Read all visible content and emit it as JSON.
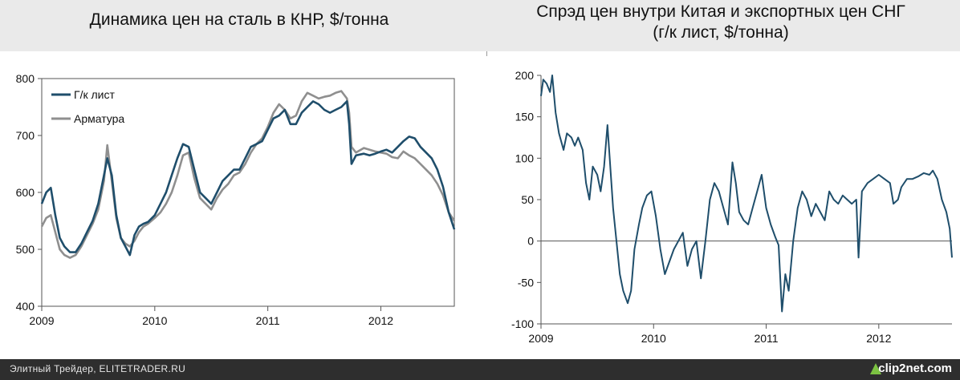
{
  "titles": {
    "left": "Динамика цен на сталь в КНР, $/тонна",
    "right_line1": "Спрэд цен внутри Китая и экспортных цен СНГ",
    "right_line2": "(г/к лист, $/тонна)"
  },
  "footer": {
    "text": "Элитный Трейдер, ELITETRADER.RU",
    "brand": "clip2net.com"
  },
  "chart_data": [
    {
      "type": "line",
      "title": "Динамика цен на сталь в КНР, $/тонна",
      "x_ticks": [
        "2009",
        "2010",
        "2011",
        "2012"
      ],
      "ylim": [
        400,
        800
      ],
      "y_ticks": [
        400,
        500,
        600,
        700,
        800
      ],
      "grid": false,
      "legend": "top-left",
      "colors": {
        "Г/к лист": "#1f4e6b",
        "Арматура": "#8f8f8f"
      },
      "series": [
        {
          "name": "Г/к лист",
          "points": [
            [
              2009.0,
              580
            ],
            [
              2009.04,
              600
            ],
            [
              2009.08,
              608
            ],
            [
              2009.12,
              560
            ],
            [
              2009.16,
              520
            ],
            [
              2009.2,
              505
            ],
            [
              2009.25,
              495
            ],
            [
              2009.3,
              495
            ],
            [
              2009.35,
              510
            ],
            [
              2009.4,
              530
            ],
            [
              2009.45,
              550
            ],
            [
              2009.5,
              580
            ],
            [
              2009.55,
              630
            ],
            [
              2009.58,
              660
            ],
            [
              2009.62,
              630
            ],
            [
              2009.66,
              560
            ],
            [
              2009.7,
              520
            ],
            [
              2009.74,
              505
            ],
            [
              2009.78,
              490
            ],
            [
              2009.82,
              525
            ],
            [
              2009.86,
              540
            ],
            [
              2009.9,
              545
            ],
            [
              2009.94,
              548
            ],
            [
              2010.0,
              560
            ],
            [
              2010.05,
              580
            ],
            [
              2010.1,
              600
            ],
            [
              2010.15,
              630
            ],
            [
              2010.2,
              660
            ],
            [
              2010.25,
              685
            ],
            [
              2010.3,
              680
            ],
            [
              2010.35,
              640
            ],
            [
              2010.4,
              600
            ],
            [
              2010.45,
              590
            ],
            [
              2010.5,
              580
            ],
            [
              2010.55,
              600
            ],
            [
              2010.6,
              620
            ],
            [
              2010.65,
              630
            ],
            [
              2010.7,
              640
            ],
            [
              2010.75,
              640
            ],
            [
              2010.8,
              660
            ],
            [
              2010.85,
              680
            ],
            [
              2010.9,
              685
            ],
            [
              2010.95,
              690
            ],
            [
              2011.0,
              710
            ],
            [
              2011.05,
              730
            ],
            [
              2011.1,
              735
            ],
            [
              2011.15,
              745
            ],
            [
              2011.2,
              720
            ],
            [
              2011.25,
              720
            ],
            [
              2011.3,
              740
            ],
            [
              2011.35,
              750
            ],
            [
              2011.4,
              760
            ],
            [
              2011.45,
              755
            ],
            [
              2011.5,
              745
            ],
            [
              2011.55,
              740
            ],
            [
              2011.6,
              745
            ],
            [
              2011.65,
              750
            ],
            [
              2011.7,
              760
            ],
            [
              2011.72,
              720
            ],
            [
              2011.74,
              650
            ],
            [
              2011.78,
              665
            ],
            [
              2011.85,
              668
            ],
            [
              2011.9,
              665
            ],
            [
              2011.95,
              668
            ],
            [
              2012.0,
              672
            ],
            [
              2012.05,
              675
            ],
            [
              2012.1,
              670
            ],
            [
              2012.15,
              680
            ],
            [
              2012.2,
              690
            ],
            [
              2012.25,
              698
            ],
            [
              2012.3,
              695
            ],
            [
              2012.35,
              680
            ],
            [
              2012.4,
              670
            ],
            [
              2012.45,
              660
            ],
            [
              2012.5,
              640
            ],
            [
              2012.55,
              610
            ],
            [
              2012.6,
              565
            ],
            [
              2012.65,
              535
            ]
          ]
        },
        {
          "name": "Арматура",
          "points": [
            [
              2009.0,
              540
            ],
            [
              2009.04,
              555
            ],
            [
              2009.08,
              560
            ],
            [
              2009.12,
              530
            ],
            [
              2009.16,
              500
            ],
            [
              2009.2,
              490
            ],
            [
              2009.25,
              485
            ],
            [
              2009.3,
              490
            ],
            [
              2009.35,
              505
            ],
            [
              2009.4,
              525
            ],
            [
              2009.45,
              545
            ],
            [
              2009.5,
              570
            ],
            [
              2009.55,
              620
            ],
            [
              2009.58,
              683
            ],
            [
              2009.62,
              620
            ],
            [
              2009.66,
              555
            ],
            [
              2009.7,
              520
            ],
            [
              2009.74,
              510
            ],
            [
              2009.78,
              505
            ],
            [
              2009.82,
              515
            ],
            [
              2009.86,
              530
            ],
            [
              2009.9,
              540
            ],
            [
              2009.94,
              545
            ],
            [
              2010.0,
              555
            ],
            [
              2010.05,
              565
            ],
            [
              2010.1,
              580
            ],
            [
              2010.15,
              600
            ],
            [
              2010.2,
              630
            ],
            [
              2010.25,
              665
            ],
            [
              2010.3,
              670
            ],
            [
              2010.35,
              625
            ],
            [
              2010.4,
              590
            ],
            [
              2010.45,
              580
            ],
            [
              2010.5,
              570
            ],
            [
              2010.55,
              590
            ],
            [
              2010.6,
              605
            ],
            [
              2010.65,
              615
            ],
            [
              2010.7,
              630
            ],
            [
              2010.75,
              635
            ],
            [
              2010.8,
              650
            ],
            [
              2010.85,
              670
            ],
            [
              2010.9,
              685
            ],
            [
              2010.95,
              695
            ],
            [
              2011.0,
              715
            ],
            [
              2011.05,
              740
            ],
            [
              2011.1,
              755
            ],
            [
              2011.15,
              745
            ],
            [
              2011.2,
              730
            ],
            [
              2011.25,
              735
            ],
            [
              2011.3,
              760
            ],
            [
              2011.35,
              775
            ],
            [
              2011.4,
              770
            ],
            [
              2011.45,
              765
            ],
            [
              2011.5,
              768
            ],
            [
              2011.55,
              770
            ],
            [
              2011.6,
              775
            ],
            [
              2011.65,
              778
            ],
            [
              2011.7,
              765
            ],
            [
              2011.72,
              740
            ],
            [
              2011.74,
              680
            ],
            [
              2011.78,
              670
            ],
            [
              2011.85,
              678
            ],
            [
              2011.9,
              675
            ],
            [
              2011.95,
              672
            ],
            [
              2012.0,
              670
            ],
            [
              2012.05,
              668
            ],
            [
              2012.1,
              662
            ],
            [
              2012.15,
              660
            ],
            [
              2012.2,
              672
            ],
            [
              2012.25,
              665
            ],
            [
              2012.3,
              660
            ],
            [
              2012.35,
              650
            ],
            [
              2012.4,
              640
            ],
            [
              2012.45,
              630
            ],
            [
              2012.5,
              615
            ],
            [
              2012.55,
              595
            ],
            [
              2012.6,
              565
            ],
            [
              2012.65,
              550
            ]
          ]
        }
      ]
    },
    {
      "type": "line",
      "title": "Спрэд цен внутри Китая и экспортных цен СНГ (г/к лист, $/тонна)",
      "x_ticks": [
        "2009",
        "2010",
        "2011",
        "2012"
      ],
      "ylim": [
        -100,
        200
      ],
      "y_ticks": [
        -100,
        -50,
        0,
        50,
        100,
        150,
        200
      ],
      "grid": false,
      "legend": "none",
      "colors": {
        "spread": "#1f4e6b"
      },
      "series": [
        {
          "points": [
            [
              2009.0,
              175
            ],
            [
              2009.02,
              195
            ],
            [
              2009.05,
              190
            ],
            [
              2009.08,
              180
            ],
            [
              2009.1,
              200
            ],
            [
              2009.13,
              155
            ],
            [
              2009.16,
              130
            ],
            [
              2009.2,
              110
            ],
            [
              2009.23,
              130
            ],
            [
              2009.27,
              125
            ],
            [
              2009.3,
              115
            ],
            [
              2009.33,
              125
            ],
            [
              2009.37,
              110
            ],
            [
              2009.4,
              70
            ],
            [
              2009.43,
              50
            ],
            [
              2009.46,
              90
            ],
            [
              2009.5,
              80
            ],
            [
              2009.53,
              60
            ],
            [
              2009.56,
              90
            ],
            [
              2009.59,
              140
            ],
            [
              2009.61,
              100
            ],
            [
              2009.64,
              40
            ],
            [
              2009.67,
              0
            ],
            [
              2009.7,
              -40
            ],
            [
              2009.73,
              -60
            ],
            [
              2009.77,
              -75
            ],
            [
              2009.8,
              -60
            ],
            [
              2009.83,
              -10
            ],
            [
              2009.87,
              20
            ],
            [
              2009.9,
              40
            ],
            [
              2009.94,
              55
            ],
            [
              2009.98,
              60
            ],
            [
              2010.02,
              30
            ],
            [
              2010.06,
              -10
            ],
            [
              2010.1,
              -40
            ],
            [
              2010.14,
              -25
            ],
            [
              2010.18,
              -10
            ],
            [
              2010.22,
              0
            ],
            [
              2010.26,
              10
            ],
            [
              2010.3,
              -30
            ],
            [
              2010.34,
              -10
            ],
            [
              2010.38,
              0
            ],
            [
              2010.42,
              -45
            ],
            [
              2010.46,
              0
            ],
            [
              2010.5,
              50
            ],
            [
              2010.54,
              70
            ],
            [
              2010.58,
              60
            ],
            [
              2010.62,
              40
            ],
            [
              2010.66,
              20
            ],
            [
              2010.7,
              95
            ],
            [
              2010.73,
              70
            ],
            [
              2010.76,
              35
            ],
            [
              2010.8,
              25
            ],
            [
              2010.84,
              20
            ],
            [
              2010.88,
              40
            ],
            [
              2010.92,
              60
            ],
            [
              2010.96,
              80
            ],
            [
              2011.0,
              40
            ],
            [
              2011.04,
              20
            ],
            [
              2011.08,
              5
            ],
            [
              2011.11,
              -5
            ],
            [
              2011.14,
              -85
            ],
            [
              2011.17,
              -40
            ],
            [
              2011.2,
              -60
            ],
            [
              2011.24,
              0
            ],
            [
              2011.28,
              40
            ],
            [
              2011.32,
              60
            ],
            [
              2011.36,
              50
            ],
            [
              2011.4,
              30
            ],
            [
              2011.44,
              45
            ],
            [
              2011.48,
              35
            ],
            [
              2011.52,
              25
            ],
            [
              2011.56,
              60
            ],
            [
              2011.6,
              50
            ],
            [
              2011.64,
              45
            ],
            [
              2011.68,
              55
            ],
            [
              2011.72,
              50
            ],
            [
              2011.76,
              45
            ],
            [
              2011.8,
              50
            ],
            [
              2011.82,
              -20
            ],
            [
              2011.85,
              60
            ],
            [
              2011.9,
              70
            ],
            [
              2011.95,
              75
            ],
            [
              2012.0,
              80
            ],
            [
              2012.05,
              75
            ],
            [
              2012.1,
              70
            ],
            [
              2012.13,
              45
            ],
            [
              2012.17,
              50
            ],
            [
              2012.2,
              65
            ],
            [
              2012.25,
              75
            ],
            [
              2012.3,
              75
            ],
            [
              2012.35,
              78
            ],
            [
              2012.4,
              82
            ],
            [
              2012.45,
              80
            ],
            [
              2012.48,
              85
            ],
            [
              2012.52,
              75
            ],
            [
              2012.56,
              50
            ],
            [
              2012.6,
              35
            ],
            [
              2012.63,
              15
            ],
            [
              2012.65,
              -20
            ]
          ]
        }
      ]
    }
  ]
}
